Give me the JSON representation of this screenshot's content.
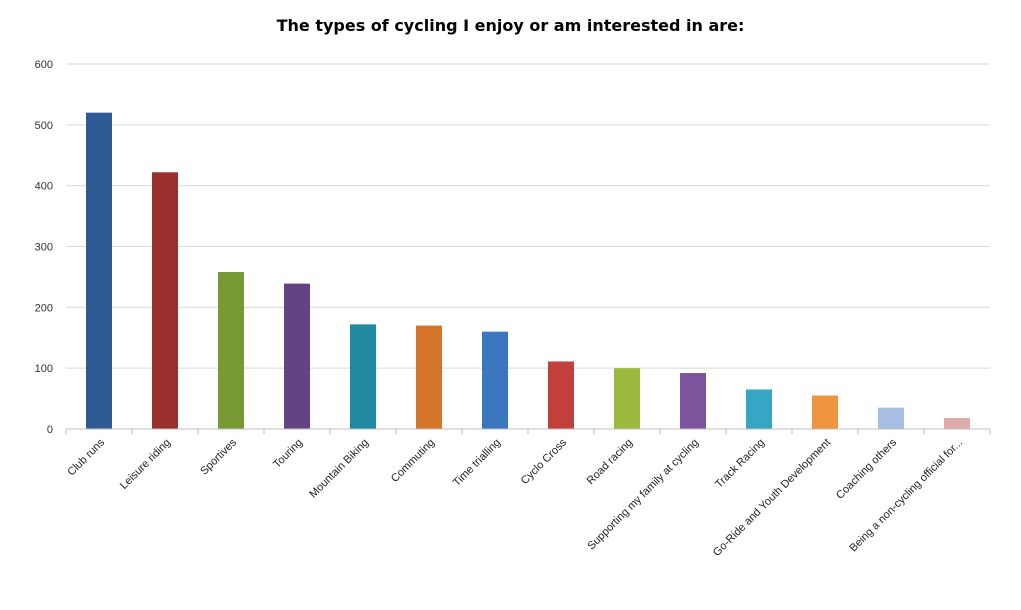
{
  "chart_data": {
    "type": "bar",
    "title": "The types of cycling I enjoy or am interested in are:",
    "xlabel": "",
    "ylabel": "",
    "ylim": [
      0,
      600
    ],
    "yticks": [
      0,
      100,
      200,
      300,
      400,
      500,
      600
    ],
    "grid": true,
    "legend": "none",
    "categories": [
      "Club runs",
      "Leisure riding",
      "Sportives",
      "Touring",
      "Mountain Biking",
      "Commuting",
      "Time trialling",
      "Cyclo Cross",
      "Road racing",
      "Supporting my family at cycling",
      "Track Racing",
      "Go-Ride and Youth Development",
      "Coaching others",
      "Being a non-cycling official for..."
    ],
    "values": [
      520,
      422,
      258,
      239,
      172,
      170,
      160,
      111,
      100,
      92,
      65,
      55,
      35,
      18
    ],
    "colors": [
      "#2e5b94",
      "#9b2f2d",
      "#789a35",
      "#634384",
      "#208aa0",
      "#d4742a",
      "#3b77bf",
      "#c2403c",
      "#9cba3f",
      "#7b559e",
      "#36a6c3",
      "#ee9540",
      "#a8bde2",
      "#deaaaa"
    ]
  }
}
